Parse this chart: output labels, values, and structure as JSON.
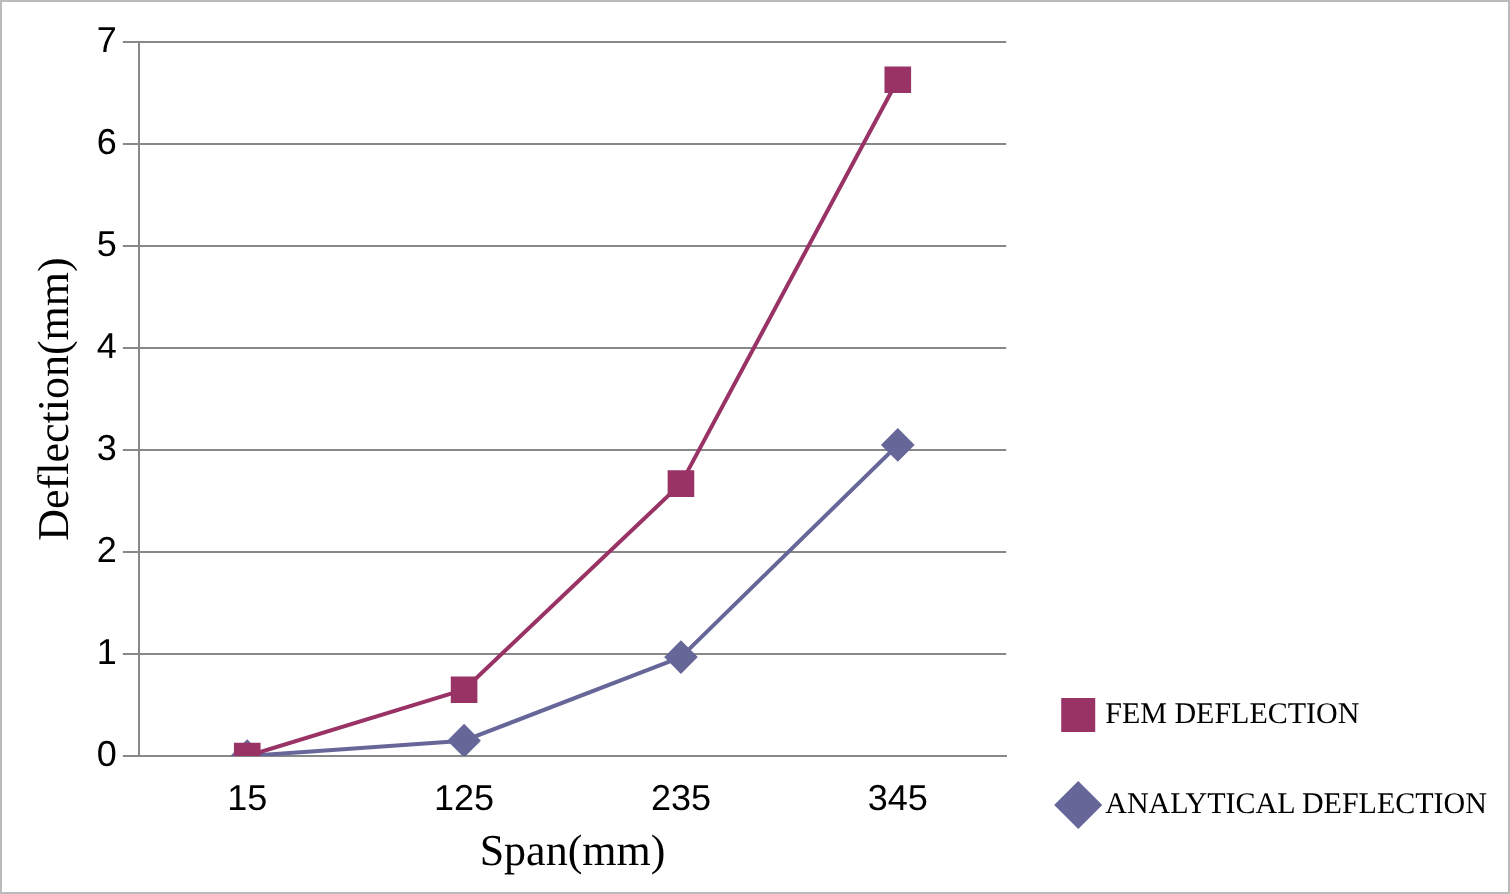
{
  "chart_data": {
    "type": "line",
    "xlabel": "Span(mm)",
    "ylabel": "Deflection(mm)",
    "categories": [
      "15",
      "125",
      "235",
      "345"
    ],
    "series": [
      {
        "name": "FEM DEFLECTION",
        "color": "#993366",
        "marker": "square",
        "values": [
          0,
          0.65,
          2.67,
          6.63
        ]
      },
      {
        "name": "ANALYTICAL DEFLECTION",
        "color": "#666699",
        "marker": "diamond",
        "values": [
          0,
          0.15,
          0.97,
          3.05
        ]
      }
    ],
    "ylim": [
      0,
      7
    ],
    "yticks": [
      0,
      1,
      2,
      3,
      4,
      5,
      6,
      7
    ],
    "grid": "y",
    "legend": "right",
    "line_style": "solid"
  }
}
